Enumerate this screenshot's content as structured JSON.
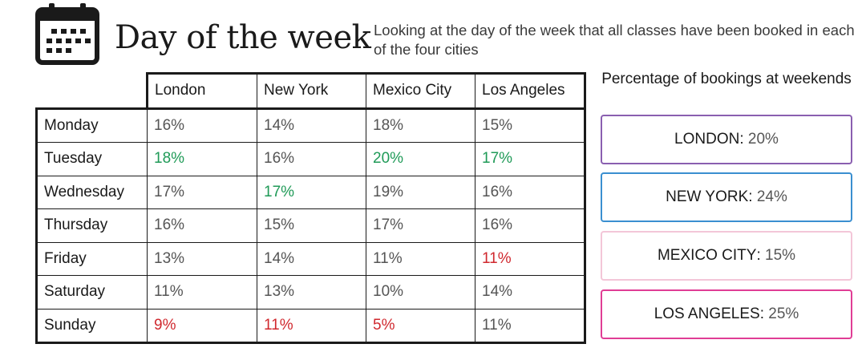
{
  "header": {
    "title": "Day of the week",
    "subtitle": "Looking at the day of the week that all classes have been booked in each of the four cities"
  },
  "table": {
    "columns": [
      "London",
      "New York",
      "Mexico City",
      "Los Angeles"
    ],
    "rows": [
      {
        "day": "Monday",
        "values": [
          "16%",
          "14%",
          "18%",
          "15%"
        ]
      },
      {
        "day": "Tuesday",
        "values": [
          "18%",
          "16%",
          "20%",
          "17%"
        ]
      },
      {
        "day": "Wednesday",
        "values": [
          "17%",
          "17%",
          "19%",
          "16%"
        ]
      },
      {
        "day": "Thursday",
        "values": [
          "16%",
          "15%",
          "17%",
          "16%"
        ]
      },
      {
        "day": "Friday",
        "values": [
          "13%",
          "14%",
          "11%",
          "11%"
        ]
      },
      {
        "day": "Saturday",
        "values": [
          "11%",
          "13%",
          "10%",
          "14%"
        ]
      },
      {
        "day": "Sunday",
        "values": [
          "9%",
          "11%",
          "5%",
          "11%"
        ]
      }
    ],
    "highlight_high_color": "#1f9a57",
    "highlight_low_color": "#d0282e"
  },
  "weekend": {
    "title": "Percentage of bookings at weekends",
    "cards": [
      {
        "city": "LONDON",
        "value": "20%",
        "color": "#8a5fb0"
      },
      {
        "city": "NEW YORK",
        "value": "24%",
        "color": "#3a8fd0"
      },
      {
        "city": "MEXICO CITY",
        "value": "15%",
        "color": "#f3c6d8"
      },
      {
        "city": "LOS ANGELES",
        "value": "25%",
        "color": "#e03d95"
      }
    ]
  }
}
